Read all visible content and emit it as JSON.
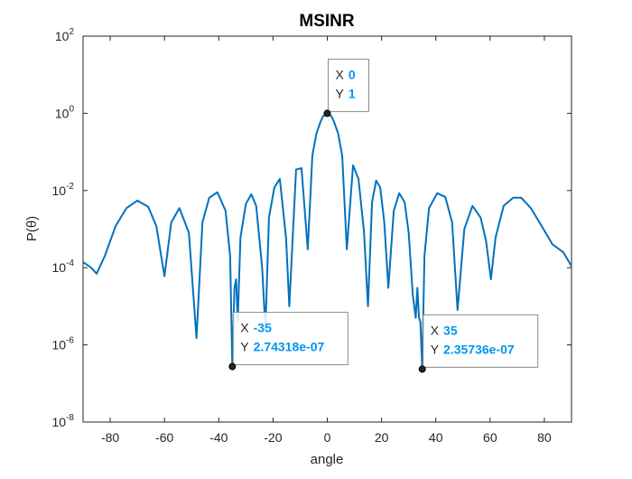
{
  "chart_data": {
    "type": "line",
    "title": "MSINR",
    "xlabel": "angle",
    "ylabel": "P(θ)",
    "xlim": [
      -90,
      90
    ],
    "ylim": [
      1e-08,
      100
    ],
    "yscale": "log",
    "xticks": [
      "-80",
      "-60",
      "-40",
      "-20",
      "0",
      "20",
      "40",
      "60",
      "80"
    ],
    "yticks": [
      {
        "base": "10",
        "exp": "2"
      },
      {
        "base": "10",
        "exp": "0"
      },
      {
        "base": "10",
        "exp": "-2"
      },
      {
        "base": "10",
        "exp": "-4"
      },
      {
        "base": "10",
        "exp": "-6"
      },
      {
        "base": "10",
        "exp": "-8"
      }
    ],
    "grid": false,
    "line_color": "#0072BD",
    "series": [
      {
        "x": [
          -90,
          -87,
          -85,
          -82,
          -78,
          -74,
          -70,
          -66,
          -63,
          -60,
          -57.5,
          -54.5,
          -51,
          -48.2,
          -46,
          -43.5,
          -40.5,
          -37.5,
          -35.8,
          -35,
          -34.2,
          -33.6,
          -33,
          -32,
          -30,
          -28,
          -26.2,
          -24,
          -22.8,
          -21.5,
          -19.5,
          -17.5,
          -15.2,
          -14,
          -11.5,
          -9.5,
          -7.2,
          -5.5,
          -4,
          -2.5,
          -1.5,
          0,
          1.5,
          2.5,
          4,
          5.5,
          7.2,
          9.5,
          11.5,
          13.5,
          15,
          16.5,
          18,
          19.5,
          21,
          22.5,
          24.5,
          26.5,
          28.5,
          30,
          31.5,
          32.6,
          33.2,
          33.8,
          34.3,
          35,
          35.8,
          37.5,
          40.5,
          43.5,
          46,
          48,
          50.5,
          53.5,
          56.5,
          58.5,
          60.3,
          62,
          65,
          68.5,
          71.5,
          75,
          79,
          83,
          87,
          90
        ],
        "y": [
          0.00014,
          0.0001,
          7e-05,
          0.0002,
          0.0012,
          0.0035,
          0.0055,
          0.0038,
          0.0012,
          6e-05,
          0.0015,
          0.0035,
          0.0008,
          1.5e-06,
          0.0015,
          0.0065,
          0.009,
          0.003,
          0.0002,
          2.74318e-07,
          3e-05,
          5e-05,
          4e-06,
          0.0006,
          0.0045,
          0.008,
          0.004,
          0.0001,
          2.5e-06,
          0.002,
          0.012,
          0.02,
          0.0006,
          1e-05,
          0.035,
          0.038,
          0.0003,
          0.08,
          0.3,
          0.6,
          0.85,
          1,
          0.85,
          0.6,
          0.3,
          0.08,
          0.0003,
          0.045,
          0.02,
          0.0009,
          1e-05,
          0.005,
          0.018,
          0.012,
          0.0015,
          3e-05,
          0.003,
          0.0085,
          0.005,
          0.0008,
          2e-05,
          5e-06,
          3e-05,
          5e-06,
          4e-06,
          2.35736e-07,
          0.0002,
          0.0035,
          0.0085,
          0.0068,
          0.0015,
          8e-06,
          0.001,
          0.004,
          0.002,
          0.0005,
          5e-05,
          0.0006,
          0.004,
          0.0065,
          0.0065,
          0.0035,
          0.0012,
          0.0004,
          0.00025,
          0.00011
        ]
      }
    ],
    "datatips": [
      {
        "x_label": "X",
        "x_value": "0",
        "y_label": "Y",
        "y_value": "1",
        "x": 0,
        "y": 1
      },
      {
        "x_label": "X",
        "x_value": "-35",
        "y_label": "Y",
        "y_value": "2.74318e-07",
        "x": -35,
        "y": 2.74318e-07
      },
      {
        "x_label": "X",
        "x_value": "35",
        "y_label": "Y",
        "y_value": "2.35736e-07",
        "x": 35,
        "y": 2.35736e-07
      }
    ],
    "datatip_value_color": "#0095F0"
  }
}
